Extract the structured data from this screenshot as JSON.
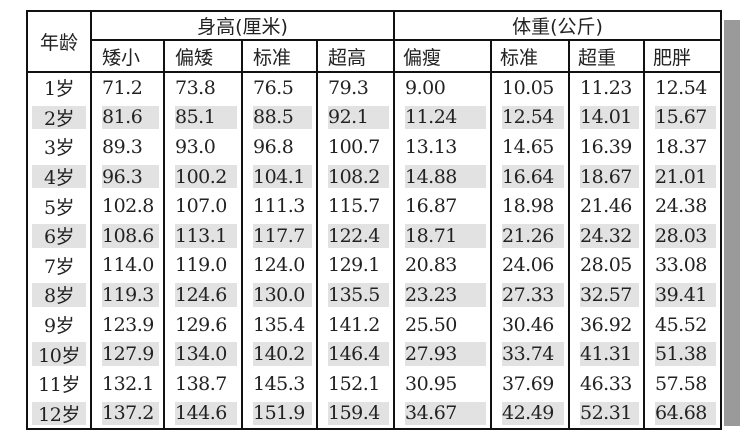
{
  "table": {
    "age_header": "年龄",
    "height_group": "身高(厘米)",
    "weight_group": "体重(公斤)",
    "height_cols": [
      "矮小",
      "偏矮",
      "标准",
      "超高"
    ],
    "weight_cols": [
      "偏瘦",
      "标准",
      "超重",
      "肥胖"
    ],
    "rows": [
      [
        "1岁",
        "71.2",
        "73.8",
        "76.5",
        "79.3",
        "9.00",
        "10.05",
        "11.23",
        "12.54"
      ],
      [
        "2岁",
        "81.6",
        "85.1",
        "88.5",
        "92.1",
        "11.24",
        "12.54",
        "14.01",
        "15.67"
      ],
      [
        "3岁",
        "89.3",
        "93.0",
        "96.8",
        "100.7",
        "13.13",
        "14.65",
        "16.39",
        "18.37"
      ],
      [
        "4岁",
        "96.3",
        "100.2",
        "104.1",
        "108.2",
        "14.88",
        "16.64",
        "18.67",
        "21.01"
      ],
      [
        "5岁",
        "102.8",
        "107.0",
        "111.3",
        "115.7",
        "16.87",
        "18.98",
        "21.46",
        "24.38"
      ],
      [
        "6岁",
        "108.6",
        "113.1",
        "117.7",
        "122.4",
        "18.71",
        "21.26",
        "24.32",
        "28.03"
      ],
      [
        "7岁",
        "114.0",
        "119.0",
        "124.0",
        "129.1",
        "20.83",
        "24.06",
        "28.05",
        "33.08"
      ],
      [
        "8岁",
        "119.3",
        "124.6",
        "130.0",
        "135.5",
        "23.23",
        "27.33",
        "32.57",
        "39.41"
      ],
      [
        "9岁",
        "123.9",
        "129.6",
        "135.4",
        "141.2",
        "25.50",
        "30.46",
        "36.92",
        "45.52"
      ],
      [
        "10岁",
        "127.9",
        "134.0",
        "140.2",
        "146.4",
        "27.93",
        "33.74",
        "41.31",
        "51.38"
      ],
      [
        "11岁",
        "132.1",
        "138.7",
        "145.3",
        "152.1",
        "30.95",
        "37.69",
        "46.33",
        "57.58"
      ],
      [
        "12岁",
        "137.2",
        "144.6",
        "151.9",
        "159.4",
        "34.67",
        "42.49",
        "52.31",
        "64.68"
      ]
    ]
  },
  "colors": {
    "stripe": "#e2e2e2",
    "border": "#111111"
  }
}
